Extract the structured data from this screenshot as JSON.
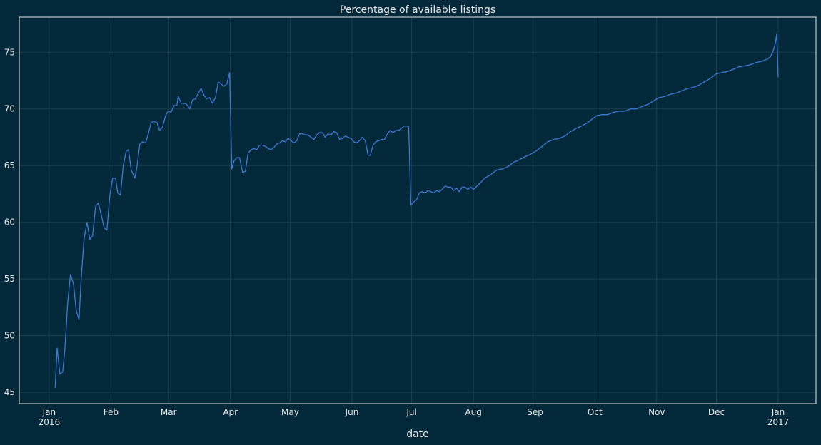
{
  "chart_data": {
    "type": "line",
    "title": "Percentage of available listings",
    "xlabel": "date",
    "color": "#3d7bd6",
    "grid": true,
    "xlim": [
      -15,
      385
    ],
    "xticks": [
      {
        "value": 0,
        "label": "Jan\n2016"
      },
      {
        "value": 31,
        "label": "Feb"
      },
      {
        "value": 60,
        "label": "Mar"
      },
      {
        "value": 91,
        "label": "Apr"
      },
      {
        "value": 121,
        "label": "May"
      },
      {
        "value": 152,
        "label": "Jun"
      },
      {
        "value": 182,
        "label": "Jul"
      },
      {
        "value": 213,
        "label": "Aug"
      },
      {
        "value": 244,
        "label": "Sep"
      },
      {
        "value": 274,
        "label": "Oct"
      },
      {
        "value": 305,
        "label": "Nov"
      },
      {
        "value": 335,
        "label": "Dec"
      },
      {
        "value": 366,
        "label": "Jan\n2017"
      }
    ],
    "ylim": [
      44,
      78.1
    ],
    "yticks": [
      45,
      50,
      55,
      60,
      65,
      70,
      75
    ],
    "x": [
      3,
      4,
      5.4,
      6.8,
      7.9,
      9.3,
      10.7,
      12.2,
      13.6,
      15,
      16.1,
      17.5,
      19,
      20.4,
      21.8,
      23.3,
      24.7,
      26.1,
      27.6,
      29,
      30.4,
      31.9,
      33.3,
      34.4,
      35.8,
      37.2,
      38.7,
      39.8,
      41.2,
      43,
      44,
      45.5,
      46.9,
      48.4,
      49.8,
      51.2,
      52.6,
      54.1,
      55.5,
      56.9,
      58.4,
      59.8,
      61.2,
      62.7,
      64.1,
      64.8,
      66.3,
      67.7,
      69.1,
      70.6,
      72,
      73.4,
      74.9,
      76.3,
      77.7,
      79.2,
      80.6,
      82,
      83.5,
      84.9,
      86.3,
      87.7,
      89.2,
      90.6,
      91.7,
      92.8,
      94.2,
      95.6,
      97.1,
      98.5,
      99.9,
      101.4,
      102.8,
      104.2,
      105.7,
      107.1,
      108.5,
      110,
      111.4,
      112.8,
      114.3,
      115.7,
      117.1,
      118.6,
      120,
      121.4,
      122.9,
      124.3,
      125.7,
      127.2,
      128.6,
      130,
      131.4,
      132.9,
      134.3,
      135.7,
      137.2,
      138.6,
      140,
      141.5,
      142.9,
      144.3,
      145.8,
      147.2,
      148.6,
      150.1,
      151.5,
      152.9,
      154.4,
      155.8,
      157.2,
      158.7,
      160.1,
      161.2,
      162.6,
      164,
      165.5,
      166.9,
      168.3,
      169.8,
      171.2,
      172.6,
      174.1,
      175.5,
      176.9,
      178.4,
      179.8,
      180.5,
      181.6,
      183,
      184.5,
      185.9,
      187.3,
      188.8,
      190.2,
      191.6,
      193.1,
      194.5,
      195.9,
      197.3,
      198.8,
      200.2,
      201.6,
      203.1,
      204.5,
      205.9,
      207.4,
      208.8,
      210.2,
      211.7,
      213.1,
      216,
      218.8,
      221.7,
      224.6,
      227.4,
      230.3,
      233.2,
      236,
      238.9,
      241.7,
      244.6,
      247.5,
      250.4,
      253.2,
      256.1,
      258.9,
      261.8,
      264.7,
      267.5,
      270.4,
      273.3,
      274.7,
      277.6,
      280.4,
      283.3,
      286.1,
      289,
      291.9,
      294.7,
      297.6,
      300.5,
      303.4,
      306.2,
      309.1,
      312,
      314.8,
      317.7,
      320.6,
      323.4,
      326.3,
      329.2,
      332,
      334.9,
      337.7,
      340.6,
      343.5,
      346.3,
      349.2,
      352.1,
      354.9,
      357.8,
      360.7,
      362.1,
      363.5,
      364.6,
      365.3,
      366
    ],
    "values": [
      45.4,
      48.9,
      46.6,
      46.8,
      48.8,
      52.9,
      55.4,
      54.6,
      52.2,
      51.4,
      55.1,
      58.5,
      60,
      58.5,
      58.8,
      61.4,
      61.7,
      60.7,
      59.5,
      59.3,
      62.3,
      63.9,
      63.9,
      62.6,
      62.4,
      65,
      66.3,
      66.4,
      64.6,
      63.9,
      64.8,
      66.9,
      67.1,
      67,
      67.8,
      68.8,
      68.9,
      68.8,
      68.1,
      68.4,
      69.4,
      69.8,
      69.7,
      70.3,
      70.3,
      71.1,
      70.5,
      70.5,
      70.4,
      70,
      70.8,
      70.9,
      71.4,
      71.8,
      71.2,
      70.9,
      71,
      70.5,
      71,
      72.4,
      72.2,
      72,
      72.2,
      73.2,
      64.7,
      65.4,
      65.7,
      65.7,
      64.4,
      64.5,
      66.1,
      66.4,
      66.5,
      66.4,
      66.8,
      66.8,
      66.7,
      66.5,
      66.4,
      66.6,
      66.9,
      67,
      67.2,
      67.1,
      67.4,
      67.2,
      67,
      67.2,
      67.8,
      67.8,
      67.7,
      67.7,
      67.5,
      67.3,
      67.7,
      67.9,
      67.9,
      67.5,
      67.8,
      67.7,
      68,
      67.9,
      67.3,
      67.4,
      67.6,
      67.5,
      67.4,
      67.1,
      67,
      67.2,
      67.5,
      67.2,
      65.9,
      65.9,
      66.8,
      67.1,
      67.2,
      67.3,
      67.3,
      67.8,
      68.1,
      67.9,
      68.1,
      68.1,
      68.3,
      68.5,
      68.5,
      68.4,
      61.5,
      61.8,
      62,
      62.6,
      62.7,
      62.6,
      62.8,
      62.7,
      62.6,
      62.8,
      62.7,
      62.9,
      63.2,
      63.1,
      63.1,
      62.8,
      63,
      62.7,
      63.1,
      63.1,
      62.9,
      63.1,
      62.9,
      63.4,
      63.9,
      64.2,
      64.6,
      64.7,
      64.9,
      65.3,
      65.5,
      65.8,
      66,
      66.3,
      66.7,
      67.1,
      67.3,
      67.4,
      67.6,
      68,
      68.3,
      68.5,
      68.8,
      69.2,
      69.4,
      69.5,
      69.5,
      69.7,
      69.8,
      69.8,
      70,
      70,
      70.2,
      70.4,
      70.7,
      71,
      71.1,
      71.3,
      71.4,
      71.6,
      71.8,
      71.9,
      72.1,
      72.4,
      72.7,
      73.1,
      73.2,
      73.3,
      73.5,
      73.7,
      73.8,
      73.9,
      74.1,
      74.2,
      74.4,
      74.6,
      75.1,
      75.8,
      76.6,
      72.8
    ]
  }
}
